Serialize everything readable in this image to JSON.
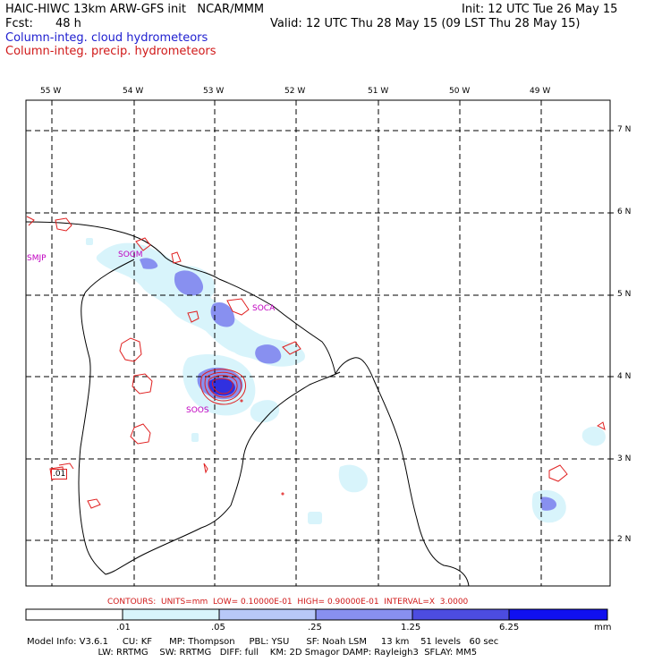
{
  "header": {
    "title": "HAIC-HIWC 13km ARW-GFS init   NCAR/MMM",
    "init": "Init: 12 UTC Tue 26 May 15",
    "fcst_label": "Fcst:",
    "fcst_value": "48 h",
    "valid": "Valid: 12 UTC Thu 28 May 15 (09 LST Thu 28 May 15)",
    "field1": "Column-integ. cloud hydrometeors",
    "field2": "Column-integ. precip. hydrometeors"
  },
  "map": {
    "lon_labels": [
      "55 W",
      "54 W",
      "53 W",
      "52 W",
      "51 W",
      "50 W",
      "49 W"
    ],
    "lat_labels": [
      "7 N",
      "6 N",
      "5 N",
      "4 N",
      "3 N",
      "2 N"
    ],
    "stations": [
      "SMJP",
      "SOGM",
      "SOCA",
      "SOOS"
    ],
    "contour_label": ".01"
  },
  "contours_info": "CONTOURS:  UNITS=mm  LOW= 0.10000E-01  HIGH= 0.90000E-01  INTERVAL=X  3.0000",
  "colorbar": {
    "labels": [
      ".01",
      ".05",
      ".25",
      "1.25",
      "6.25"
    ],
    "units": "mm",
    "colors": [
      "#ffffff",
      "#d8f4fb",
      "#b8c8f8",
      "#8890f0",
      "#4c4ce0",
      "#1010f0"
    ]
  },
  "model_info": {
    "line1": "Model Info: V3.6.1     CU: KF      MP: Thompson     PBL: YSU      SF: Noah LSM     13 km    51 levels   60 sec",
    "line2": "                         LW: RRTMG    SW: RRTMG   DIFF: full    KM: 2D Smagor DAMP: Rayleigh3  SFLAY: MM5"
  }
}
